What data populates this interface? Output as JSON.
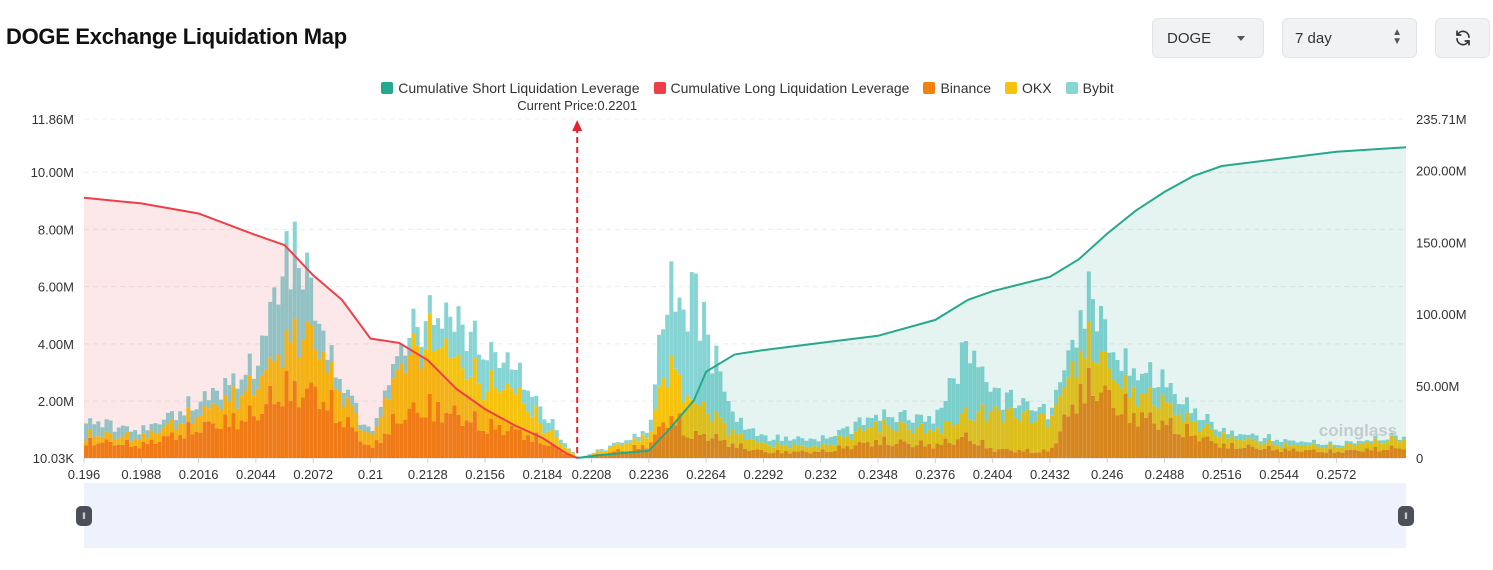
{
  "header": {
    "title": "DOGE Exchange Liquidation Map"
  },
  "controls": {
    "coin": {
      "value": "DOGE",
      "icon": "chevron-down-icon"
    },
    "period": {
      "value": "7 day",
      "icon": "up-down-chevron-icon"
    },
    "refresh": {
      "icon": "refresh-icon"
    }
  },
  "colors": {
    "short_cum": "#26a88e",
    "long_cum": "#ec3f48",
    "binance": "#f0820f",
    "okx": "#f5c20d",
    "bybit": "#86d4d4"
  },
  "chart_data": {
    "type": "bar",
    "legend": [
      "Cumulative Short Liquidation Leverage",
      "Cumulative Long Liquidation Leverage",
      "Binance",
      "OKX",
      "Bybit"
    ],
    "legend_position": "top-center",
    "annotation": "Current Price:0.2201",
    "current_price": 0.2201,
    "watermark": "coinglass",
    "x_ticks": [
      "0.196",
      "0.1988",
      "0.2016",
      "0.2044",
      "0.2072",
      "0.21",
      "0.2128",
      "0.2156",
      "0.2184",
      "0.2208",
      "0.2236",
      "0.2264",
      "0.2292",
      "0.232",
      "0.2348",
      "0.2376",
      "0.2404",
      "0.2432",
      "0.246",
      "0.2488",
      "0.2516",
      "0.2544",
      "0.2572"
    ],
    "x_range": [
      0.196,
      0.2606
    ],
    "y_left_ticks": [
      "10.03K",
      "2.00M",
      "4.00M",
      "6.00M",
      "8.00M",
      "10.00M",
      "11.86M"
    ],
    "y_left_range": [
      10030,
      11860000
    ],
    "y_right_ticks": [
      "0",
      "50.00M",
      "100.00M",
      "150.00M",
      "200.00M",
      "235.71M"
    ],
    "y_right_range": [
      0,
      235710000
    ],
    "grid": true,
    "bar_anchors": {
      "x": [
        0.196,
        0.1988,
        0.2016,
        0.2044,
        0.2058,
        0.2065,
        0.2072,
        0.2079,
        0.2086,
        0.21,
        0.2114,
        0.2128,
        0.2135,
        0.2142,
        0.2156,
        0.217,
        0.2184,
        0.2196,
        0.2202,
        0.2236,
        0.2246,
        0.2252,
        0.2258,
        0.2264,
        0.2278,
        0.2292,
        0.232,
        0.2348,
        0.2376,
        0.2392,
        0.2404,
        0.2432,
        0.2446,
        0.2454,
        0.246,
        0.2474,
        0.2488,
        0.2502,
        0.2516,
        0.2544,
        0.2572,
        0.2606
      ],
      "binance": [
        0.8,
        0.6,
        1.4,
        2.0,
        3.3,
        3.0,
        3.1,
        2.6,
        1.9,
        0.4,
        1.9,
        2.4,
        2.2,
        2.0,
        1.5,
        1.3,
        0.8,
        0.2,
        0.0,
        0.6,
        2.0,
        1.5,
        1.0,
        1.1,
        0.6,
        0.3,
        0.3,
        0.8,
        0.6,
        1.0,
        0.4,
        0.3,
        3.0,
        3.5,
        2.8,
        2.0,
        1.6,
        1.1,
        0.6,
        0.4,
        0.3,
        0.5
      ],
      "okx": [
        0.3,
        0.3,
        0.6,
        1.2,
        1.8,
        2.5,
        2.2,
        1.6,
        1.0,
        0.4,
        2.1,
        2.8,
        2.8,
        2.2,
        1.7,
        1.7,
        0.7,
        0.2,
        0.0,
        0.4,
        2.4,
        1.6,
        1.4,
        1.1,
        0.5,
        0.3,
        0.2,
        0.7,
        0.6,
        0.9,
        1.6,
        1.3,
        1.6,
        1.7,
        1.2,
        0.9,
        0.9,
        0.5,
        0.4,
        0.2,
        0.2,
        0.4
      ],
      "bybit": [
        0.6,
        0.3,
        0.5,
        0.8,
        3.7,
        3.5,
        1.7,
        0.6,
        0.5,
        0.2,
        0.7,
        1.0,
        1.2,
        1.8,
        1.4,
        1.0,
        0.6,
        0.1,
        0.0,
        0.2,
        3.4,
        3.0,
        5.2,
        3.3,
        0.6,
        0.3,
        0.3,
        0.4,
        0.5,
        3.0,
        0.8,
        0.3,
        1.3,
        2.4,
        1.0,
        0.9,
        0.9,
        0.5,
        0.2,
        0.2,
        0.1,
        0.1
      ]
    },
    "long_cumulative": {
      "x": [
        0.196,
        0.1988,
        0.2016,
        0.2044,
        0.2058,
        0.2072,
        0.2086,
        0.21,
        0.2114,
        0.2128,
        0.2142,
        0.2156,
        0.217,
        0.2184,
        0.2196,
        0.2201
      ],
      "y": [
        181,
        177,
        170,
        155,
        148,
        127,
        110,
        83,
        80,
        68,
        48,
        34,
        23,
        14,
        3,
        0
      ]
    },
    "short_cumulative": {
      "x": [
        0.2201,
        0.2212,
        0.2236,
        0.2246,
        0.2258,
        0.2264,
        0.2278,
        0.2292,
        0.232,
        0.2348,
        0.2376,
        0.2392,
        0.2404,
        0.2432,
        0.2446,
        0.246,
        0.2474,
        0.2488,
        0.2502,
        0.2516,
        0.2544,
        0.2572,
        0.2606
      ],
      "y": [
        0,
        2,
        5,
        20,
        40,
        60,
        72,
        75,
        80,
        85,
        96,
        110,
        116,
        126,
        138,
        156,
        172,
        185,
        196,
        203,
        208,
        213,
        216
      ]
    }
  }
}
